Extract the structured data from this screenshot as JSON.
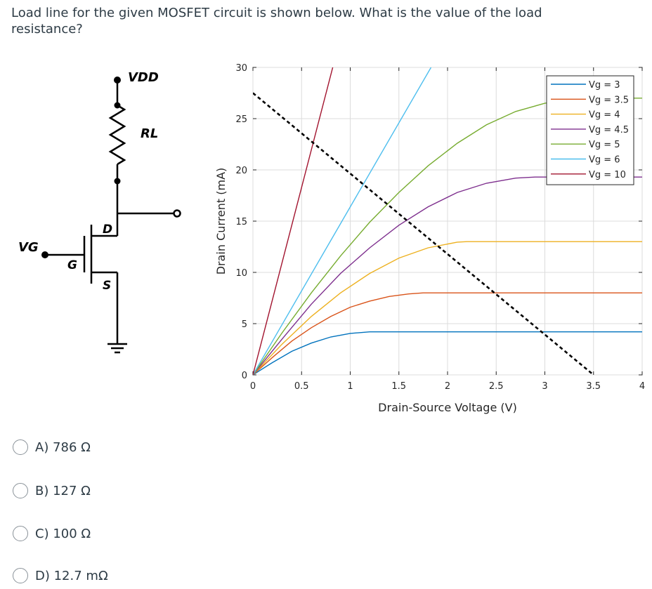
{
  "question": {
    "text": "Load line for the given MOSFET circuit is shown below. What is the value of the load resistance?"
  },
  "circuit": {
    "labels": {
      "vdd": "VDD",
      "rl": "RL",
      "vg": "VG",
      "d": "D",
      "g": "G",
      "s": "S"
    }
  },
  "chart_data": {
    "type": "line",
    "xlabel": "Drain-Source Voltage (V)",
    "ylabel": "Drain Current (mA)",
    "xlim": [
      0,
      4
    ],
    "ylim": [
      0,
      30
    ],
    "xticks": [
      "0",
      "0.5",
      "1",
      "1.5",
      "2",
      "2.5",
      "3",
      "3.5",
      "4"
    ],
    "yticks": [
      "0",
      "5",
      "10",
      "15",
      "20",
      "25",
      "30"
    ],
    "grid": true,
    "legend_position": "top-right",
    "series": [
      {
        "name": "Vg = 3",
        "color": "#0072bd",
        "x": [
          0,
          0.2,
          0.4,
          0.6,
          0.8,
          1.0,
          1.2,
          1.3,
          4.0
        ],
        "y": [
          0,
          1.2,
          2.3,
          3.1,
          3.7,
          4.05,
          4.2,
          4.2,
          4.2
        ]
      },
      {
        "name": "Vg = 3.5",
        "color": "#d95319",
        "x": [
          0,
          0.2,
          0.4,
          0.6,
          0.8,
          1.0,
          1.2,
          1.4,
          1.6,
          1.75,
          4.0
        ],
        "y": [
          0,
          1.7,
          3.3,
          4.6,
          5.7,
          6.6,
          7.2,
          7.65,
          7.9,
          8.0,
          8.0
        ]
      },
      {
        "name": "Vg = 4",
        "color": "#edb120",
        "x": [
          0,
          0.3,
          0.6,
          0.9,
          1.2,
          1.5,
          1.8,
          2.1,
          2.2,
          4.0
        ],
        "y": [
          0,
          3.0,
          5.7,
          8.0,
          9.9,
          11.4,
          12.4,
          12.95,
          13.0,
          13.0
        ]
      },
      {
        "name": "Vg = 4.5",
        "color": "#7e2f8e",
        "x": [
          0,
          0.3,
          0.6,
          0.9,
          1.2,
          1.5,
          1.8,
          2.1,
          2.4,
          2.7,
          2.9,
          4.0
        ],
        "y": [
          0,
          3.5,
          6.9,
          9.9,
          12.4,
          14.6,
          16.4,
          17.8,
          18.7,
          19.2,
          19.3,
          19.3
        ]
      },
      {
        "name": "Vg = 5",
        "color": "#77ac30",
        "x": [
          0,
          0.3,
          0.6,
          0.9,
          1.2,
          1.5,
          1.8,
          2.1,
          2.4,
          2.7,
          3.0,
          3.3,
          3.45,
          4.0
        ],
        "y": [
          0,
          4.1,
          8.0,
          11.6,
          14.9,
          17.8,
          20.4,
          22.6,
          24.4,
          25.7,
          26.5,
          26.9,
          27.0,
          27.0
        ]
      },
      {
        "name": "Vg = 6",
        "color": "#4dbeee",
        "x": [
          0,
          1.83
        ],
        "y": [
          0,
          30
        ]
      },
      {
        "name": "Vg = 10",
        "color": "#a2142f",
        "x": [
          0,
          0.82
        ],
        "y": [
          0,
          30
        ]
      },
      {
        "name": "Load line",
        "color": "#000000",
        "dashed": true,
        "x": [
          0,
          3.5
        ],
        "y": [
          27.5,
          0
        ]
      }
    ]
  },
  "answers": [
    {
      "label": "A) 786 Ω"
    },
    {
      "label": "B) 127 Ω"
    },
    {
      "label": "C) 100 Ω"
    },
    {
      "label": "D) 12.7 mΩ"
    }
  ]
}
